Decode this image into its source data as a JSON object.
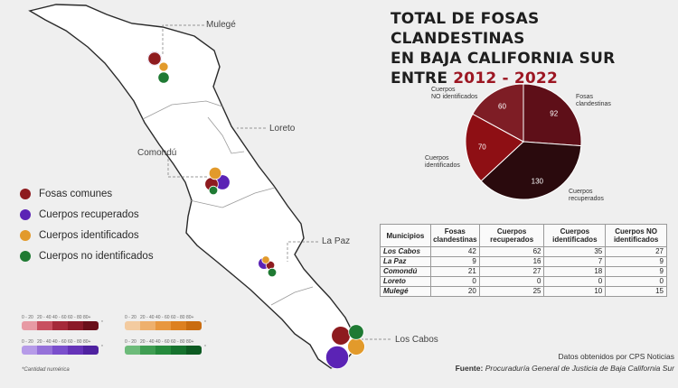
{
  "title": {
    "line1": "TOTAL DE FOSAS CLANDESTINAS",
    "line2": "EN BAJA CALIFORNIA SUR",
    "line3_prefix": "ENTRE ",
    "line3_years": "2012 - 2022"
  },
  "cities": {
    "mulege": "Mulegé",
    "loreto": "Loreto",
    "comondu": "Comondú",
    "la_paz": "La Paz",
    "los_cabos": "Los Cabos"
  },
  "legend": [
    {
      "label": "Fosas comunes",
      "color": "#8e1b1f"
    },
    {
      "label": "Cuerpos recuperados",
      "color": "#5b23b5"
    },
    {
      "label": "Cuerpos identificados",
      "color": "#e29a2b"
    },
    {
      "label": "Cuerpos no identificados",
      "color": "#1f7a33"
    }
  ],
  "scale": {
    "ticks": [
      "0 - 20",
      "20 - 40",
      "40 - 60",
      "60 - 80",
      "80+"
    ],
    "star": "*",
    "note": "*Cantidad numérica",
    "ramps": [
      [
        "#e79aa4",
        "#c85060",
        "#a52a3a",
        "#8a1a28",
        "#6a0f1a"
      ],
      [
        "#f3cba0",
        "#eeb06d",
        "#e8973f",
        "#dd8020",
        "#c96c10"
      ],
      [
        "#b69be8",
        "#9571d9",
        "#7a4fcc",
        "#6533b8",
        "#4f22a0"
      ],
      [
        "#6dbb7a",
        "#3f9d52",
        "#258a3c",
        "#16722e",
        "#0d5a22"
      ]
    ]
  },
  "chart_data": {
    "type": "pie",
    "title": "TOTAL DE FOSAS CLANDESTINAS EN BAJA CALIFORNIA SUR ENTRE 2012 - 2022",
    "slices": [
      {
        "label": "Fosas clandestinas",
        "value": 92,
        "color": "#5e0f18"
      },
      {
        "label": "Cuerpos recuperados",
        "value": 130,
        "color": "#2a0a0d"
      },
      {
        "label": "Cuerpos identificados",
        "value": 70,
        "color": "#8e0f14"
      },
      {
        "label": "Cuerpos NO identificados",
        "value": 60,
        "color": "#7e1d25"
      }
    ]
  },
  "pie_labels": {
    "fosas": [
      "Fosas",
      "clandestinas"
    ],
    "recuperados": [
      "Cuerpos",
      "recuperados"
    ],
    "identificados": [
      "Cuerpos",
      "identificados"
    ],
    "no_identificados": [
      "Cuerpos",
      "NO identificados"
    ]
  },
  "table": {
    "headers": [
      "Municipios",
      "Fosas clandestinas",
      "Cuerpos recuperados",
      "Cuerpos identificados",
      "Cuerpos NO identificados"
    ],
    "rows": [
      {
        "municipio": "Los Cabos",
        "values": [
          "42",
          "62",
          "35",
          "27"
        ]
      },
      {
        "municipio": "La Paz",
        "values": [
          "9",
          "16",
          "7",
          "9"
        ]
      },
      {
        "municipio": "Comondú",
        "values": [
          "21",
          "27",
          "18",
          "9"
        ]
      },
      {
        "municipio": "Loreto",
        "values": [
          "0",
          "0",
          "0",
          "0"
        ]
      },
      {
        "municipio": "Mulegé",
        "values": [
          "20",
          "25",
          "10",
          "15"
        ]
      }
    ]
  },
  "map_markers": [
    {
      "municipio": "Mulegé",
      "values": {
        "fosas": 20,
        "recuperados": 25,
        "identificados": 10,
        "no_identificados": 15
      }
    },
    {
      "municipio": "Comondú",
      "values": {
        "fosas": 21,
        "recuperados": 27,
        "identificados": 18,
        "no_identificados": 9
      }
    },
    {
      "municipio": "La Paz",
      "values": {
        "fosas": 9,
        "recuperados": 16,
        "identificados": 7,
        "no_identificados": 9
      }
    },
    {
      "municipio": "Los Cabos",
      "values": {
        "fosas": 42,
        "recuperados": 62,
        "identificados": 35,
        "no_identificados": 27
      }
    }
  ],
  "footer": {
    "source": "Datos obtenidos por CPS Noticias",
    "credit_label": "Fuente:",
    "credit_text": "Procuraduría General de Justicia de Baja California Sur"
  }
}
